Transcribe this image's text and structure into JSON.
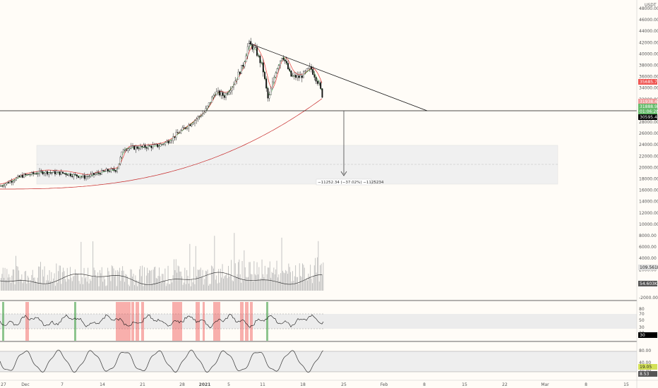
{
  "header": {
    "currency": "USDT"
  },
  "price_axis": {
    "ticks": [
      "48000.00",
      "46000.00",
      "44000.00",
      "42000.00",
      "40000.00",
      "38000.00",
      "36000.00",
      "34000.00",
      "32000.00",
      "30000.00",
      "28000.00",
      "26000.00",
      "24000.00",
      "22000.00",
      "20000.00",
      "18000.00",
      "16000.00",
      "14000.00",
      "12000.00",
      "10000.00",
      "8000.00",
      "6000.00",
      "4000.00",
      "2000.00",
      "-2000.00"
    ],
    "tags": [
      {
        "text": "35685.79",
        "color": "#ef5350",
        "text_color": "#ffffff"
      },
      {
        "text": "31938.49",
        "color": "#ef9a9a",
        "text_color": "#ffffff"
      },
      {
        "text": "31888.95",
        "color": "#66bb6a",
        "text_color": "#ffffff"
      },
      {
        "text": "01:06:28",
        "color": "#66bb6a",
        "text_color": "#ffffff"
      },
      {
        "text": "30595.46",
        "color": "#000000",
        "text_color": "#ffffff"
      },
      {
        "text": "109.561K",
        "color": "#e0e0e0",
        "text_color": "#222222"
      },
      {
        "text": "54.603K",
        "color": "#555555",
        "text_color": "#ffffff"
      }
    ]
  },
  "rsi_axis": {
    "ticks": [
      "80",
      "70",
      "50",
      "30",
      "20"
    ],
    "tags": [
      {
        "text": "30",
        "color": "#000000",
        "text_color": "#ffffff"
      }
    ]
  },
  "stoch_axis": {
    "ticks": [
      "80.00",
      "40.00",
      "20.00"
    ],
    "tags": [
      {
        "text": "19.05",
        "color": "#d4e157",
        "text_color": "#222222"
      },
      {
        "text": "8.53",
        "color": "#555555",
        "text_color": "#ffffff"
      }
    ]
  },
  "time_axis": {
    "labels": [
      "27",
      "Dec",
      "7",
      "14",
      "21",
      "28",
      "2021",
      "5",
      "11",
      "18",
      "25",
      "Feb",
      "8",
      "15",
      "22",
      "Mar",
      "8",
      "15"
    ]
  },
  "measure_label": "−11252.34 (−37.02%) −1125234",
  "colors": {
    "background": "#fffcf7",
    "candle": "#111111",
    "ma_fast": "#4caf50",
    "ma_mid": "#e53935",
    "ma_slow": "#c62828",
    "volume": "#bdbdbd",
    "band": "#e8e8e8",
    "rsi_signal_red": "#ef5350",
    "rsi_signal_green": "#43a047",
    "line": "#111111"
  }
}
